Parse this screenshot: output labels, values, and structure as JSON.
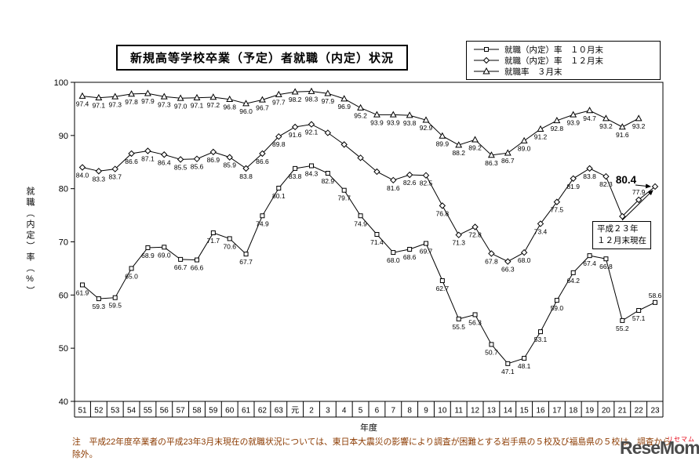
{
  "header": {
    "title": "新規高等学校卒業（予定）者就職（内定）状況"
  },
  "legend": {
    "items": [
      {
        "label": "就職（内定）率　１０月末",
        "marker": "square"
      },
      {
        "label": "就職（内定）率　１２月末",
        "marker": "diamond"
      },
      {
        "label": "就職率　３月末",
        "marker": "triangle"
      }
    ]
  },
  "axes": {
    "x_title": "年度",
    "y_title": "就職（内定）率（%）"
  },
  "annotation": {
    "line1": "平成２３年",
    "line2": "１２月末現在",
    "highlight_value": "80.4"
  },
  "note": {
    "text": "注　平成22年度卒業者の平成23年3月末現在の就職状況については、東日本大震災の影響により調査が困難とする岩手県の５校及び福島県の５校は、調査から除外。"
  },
  "logo": {
    "main": "ReseMom",
    "sub": "リセマム"
  },
  "colors": {
    "line": "#000000",
    "note_text": "#8b3a00",
    "logo_main": "#4b4b4b",
    "logo_sub": "#e60012"
  },
  "chart_data": {
    "type": "line",
    "title": "新規高等学校卒業（予定）者就職（内定）状況",
    "xlabel": "年度",
    "ylabel": "就職（内定）率（%）",
    "ylim": [
      40,
      100
    ],
    "yticks": [
      40,
      50,
      60,
      70,
      80,
      90,
      100
    ],
    "grid": false,
    "legend_position": "top-right",
    "categories": [
      "51",
      "52",
      "53",
      "54",
      "55",
      "56",
      "57",
      "58",
      "59",
      "60",
      "61",
      "62",
      "63",
      "元",
      "2",
      "3",
      "4",
      "5",
      "6",
      "7",
      "8",
      "9",
      "10",
      "11",
      "12",
      "13",
      "14",
      "15",
      "16",
      "17",
      "18",
      "19",
      "20",
      "21",
      "22",
      "23"
    ],
    "series": [
      {
        "name": "就職（内定）率　１０月末",
        "marker": "square",
        "values": [
          61.9,
          59.3,
          59.5,
          65.0,
          68.9,
          69.0,
          66.7,
          66.6,
          71.7,
          70.6,
          67.7,
          74.9,
          80.1,
          83.8,
          84.3,
          82.9,
          79.7,
          74.9,
          71.4,
          68.0,
          68.6,
          69.7,
          62.7,
          55.5,
          56.3,
          50.7,
          47.1,
          48.1,
          53.1,
          59.0,
          64.2,
          67.4,
          66.8,
          55.2,
          57.1,
          58.6
        ]
      },
      {
        "name": "就職（内定）率　１２月末",
        "marker": "diamond",
        "values": [
          84.0,
          83.3,
          83.7,
          86.6,
          87.1,
          86.4,
          85.5,
          85.6,
          86.9,
          85.9,
          83.8,
          86.6,
          89.8,
          91.6,
          92.1,
          90.5,
          88.3,
          85.8,
          83.2,
          81.6,
          82.6,
          82.5,
          76.8,
          71.3,
          72.8,
          67.8,
          66.3,
          68.0,
          73.4,
          77.5,
          81.9,
          83.8,
          82.3,
          74.8,
          77.9,
          80.4
        ],
        "unlabeled_indices": [
          15,
          16,
          17,
          18
        ],
        "highlight_index": 35
      },
      {
        "name": "就職率　３月末",
        "marker": "triangle",
        "values": [
          97.4,
          97.1,
          97.3,
          97.8,
          97.9,
          97.3,
          97.0,
          97.1,
          97.2,
          96.8,
          96.0,
          96.7,
          97.7,
          98.2,
          98.3,
          97.9,
          96.9,
          95.2,
          93.9,
          93.9,
          93.8,
          92.9,
          89.9,
          88.2,
          89.2,
          86.3,
          86.7,
          89.0,
          91.2,
          92.8,
          93.9,
          94.7,
          93.2,
          91.6,
          93.2,
          null
        ]
      }
    ]
  }
}
